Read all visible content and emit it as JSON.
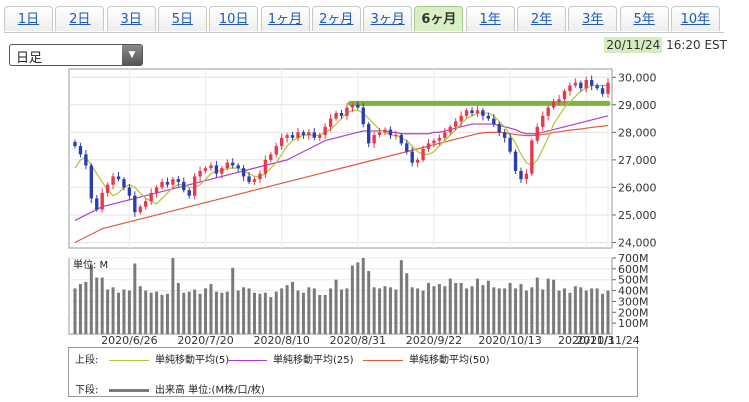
{
  "tabs": [
    {
      "label": "1日",
      "active": false
    },
    {
      "label": "2日",
      "active": false
    },
    {
      "label": "3日",
      "active": false
    },
    {
      "label": "5日",
      "active": false
    },
    {
      "label": "10日",
      "active": false
    },
    {
      "label": "1ヶ月",
      "active": false
    },
    {
      "label": "2ヶ月",
      "active": false
    },
    {
      "label": "3ヶ月",
      "active": false
    },
    {
      "label": "6ヶ月",
      "active": true
    },
    {
      "label": "1年",
      "active": false
    },
    {
      "label": "2年",
      "active": false
    },
    {
      "label": "3年",
      "active": false
    },
    {
      "label": "5年",
      "active": false
    },
    {
      "label": "10年",
      "active": false
    }
  ],
  "selector": {
    "value": "日足"
  },
  "timestamp": {
    "date": "20/11/24",
    "time": "16:20 EST"
  },
  "volume_unit_label": "単位: M",
  "legend": {
    "upper_label": "上段:",
    "lower_label": "下段:",
    "ma5": "単純移動平均(5)",
    "ma25": "単純移動平均(25)",
    "ma50": "単純移動平均(50)",
    "volume": "出来高 単位:(M株/口/枚)"
  },
  "colors": {
    "ma5": "#b5c334",
    "ma25": "#b03ec9",
    "ma50": "#e0593a",
    "up": "#e8384c",
    "down": "#2a3fae",
    "volume": "#7a7a7a",
    "highlight": "#7cb342"
  },
  "chart_data": [
    {
      "type": "candlestick",
      "title": "",
      "y_ticks": [
        "30,000",
        "29,000",
        "28,000",
        "27,000",
        "26,000",
        "25,000",
        "24,000"
      ],
      "ylim": [
        23800,
        30300
      ],
      "x_ticks": [
        "2020/6/26",
        "2020/7/20",
        "2020/8/10",
        "2020/8/31",
        "2020/9/22",
        "2020/10/13",
        "2020/11/3",
        "2020/11/24"
      ],
      "resistance_level": 29050,
      "close": [
        27500,
        27200,
        26800,
        25600,
        25200,
        25800,
        26100,
        26400,
        26300,
        26000,
        25700,
        25100,
        25300,
        25500,
        25800,
        26000,
        26200,
        26100,
        26300,
        26200,
        25900,
        25700,
        26400,
        26600,
        26700,
        26800,
        26500,
        26700,
        26900,
        26800,
        26700,
        26400,
        26200,
        26300,
        26500,
        27000,
        27200,
        27500,
        27800,
        27900,
        27800,
        28000,
        27900,
        28000,
        27800,
        27900,
        28200,
        28500,
        28700,
        28600,
        28900,
        29000,
        28900,
        28300,
        27600,
        27900,
        28000,
        28100,
        27900,
        27900,
        27600,
        27300,
        26900,
        27000,
        27400,
        27600,
        27700,
        27800,
        28000,
        28200,
        28400,
        28600,
        28800,
        28700,
        28800,
        28600,
        28500,
        28300,
        28000,
        27800,
        27300,
        26600,
        26300,
        26500,
        27700,
        28200,
        28600,
        28900,
        29100,
        29200,
        29500,
        29700,
        29800,
        29600,
        29900,
        29700,
        29600,
        29400,
        29800
      ],
      "ma5": [
        26700,
        27000,
        27100,
        26800,
        26500,
        26200,
        25900,
        25700,
        25800,
        26000,
        26100,
        26000,
        25800,
        25600,
        25500,
        25400,
        25600,
        25800,
        26000,
        26100,
        26100,
        26000,
        26000,
        26100,
        26300,
        26500,
        26600,
        26600,
        26700,
        26700,
        26700,
        26600,
        26500,
        26400,
        26400,
        26500,
        26700,
        26900,
        27200,
        27500,
        27700,
        27800,
        27900,
        27900,
        27900,
        27900,
        28000,
        28100,
        28300,
        28500,
        28700,
        28800,
        28800,
        28700,
        28500,
        28300,
        28100,
        28000,
        27900,
        27900,
        27800,
        27700,
        27500,
        27300,
        27200,
        27200,
        27300,
        27500,
        27700,
        27900,
        28100,
        28300,
        28500,
        28600,
        28700,
        28700,
        28700,
        28600,
        28400,
        28200,
        27900,
        27600,
        27200,
        26900,
        26800,
        27000,
        27400,
        27800,
        28300,
        28600,
        28900,
        29100,
        29300,
        29500,
        29600,
        29700,
        29700,
        29700,
        29700
      ],
      "ma25": [
        24800,
        24900,
        25000,
        25100,
        25200,
        25300,
        25350,
        25400,
        25450,
        25500,
        25550,
        25600,
        25650,
        25700,
        25750,
        25800,
        25850,
        25900,
        25950,
        26000,
        26050,
        26100,
        26150,
        26200,
        26250,
        26300,
        26350,
        26400,
        26450,
        26500,
        26550,
        26600,
        26650,
        26700,
        26750,
        26800,
        26850,
        26900,
        26950,
        27000,
        27100,
        27200,
        27300,
        27400,
        27500,
        27600,
        27700,
        27750,
        27800,
        27850,
        27900,
        27950,
        28000,
        28050,
        28050,
        28050,
        28050,
        28050,
        28000,
        28000,
        27950,
        27950,
        27950,
        27950,
        27950,
        27950,
        28000,
        28000,
        28050,
        28100,
        28150,
        28200,
        28250,
        28300,
        28300,
        28300,
        28300,
        28300,
        28250,
        28200,
        28150,
        28100,
        28000,
        27950,
        27950,
        27950,
        28000,
        28050,
        28100,
        28150,
        28200,
        28250,
        28300,
        28350,
        28400,
        28450,
        28500,
        28550,
        28600
      ],
      "ma50": [
        24000,
        24100,
        24200,
        24300,
        24400,
        24500,
        24550,
        24600,
        24650,
        24700,
        24750,
        24800,
        24850,
        24900,
        24950,
        25000,
        25050,
        25100,
        25150,
        25200,
        25250,
        25300,
        25350,
        25400,
        25450,
        25500,
        25550,
        25600,
        25650,
        25700,
        25750,
        25800,
        25850,
        25900,
        25950,
        26000,
        26050,
        26100,
        26150,
        26200,
        26250,
        26300,
        26350,
        26400,
        26450,
        26500,
        26550,
        26600,
        26650,
        26700,
        26750,
        26800,
        26850,
        26900,
        26950,
        27000,
        27050,
        27100,
        27150,
        27200,
        27250,
        27300,
        27350,
        27400,
        27450,
        27500,
        27550,
        27600,
        27650,
        27700,
        27750,
        27800,
        27850,
        27900,
        27950,
        27980,
        28000,
        28000,
        28000,
        27980,
        27950,
        27920,
        27900,
        27880,
        27880,
        27900,
        27920,
        27950,
        28000,
        28020,
        28050,
        28080,
        28100,
        28120,
        28150,
        28180,
        28200,
        28220,
        28250
      ],
      "volume": {
        "unit": "M",
        "y_ticks": [
          "700M",
          "600M",
          "500M",
          "400M",
          "300M",
          "200M",
          "100M"
        ],
        "ylim": [
          0,
          700
        ],
        "values": [
          420,
          460,
          480,
          640,
          520,
          520,
          410,
          430,
          380,
          410,
          400,
          650,
          440,
          400,
          380,
          390,
          360,
          370,
          700,
          470,
          380,
          390,
          410,
          370,
          420,
          460,
          390,
          380,
          390,
          610,
          400,
          430,
          420,
          380,
          370,
          380,
          340,
          390,
          420,
          450,
          480,
          400,
          380,
          430,
          420,
          360,
          360,
          420,
          500,
          410,
          420,
          630,
          660,
          700,
          580,
          430,
          420,
          440,
          430,
          410,
          680,
          560,
          430,
          420,
          400,
          470,
          440,
          460,
          440,
          510,
          470,
          470,
          420,
          440,
          510,
          450,
          490,
          430,
          420,
          420,
          470,
          420,
          460,
          400,
          430,
          520,
          410,
          510,
          500,
          400,
          420,
          380,
          440,
          430,
          400,
          420,
          420,
          370,
          400
        ]
      }
    }
  ]
}
